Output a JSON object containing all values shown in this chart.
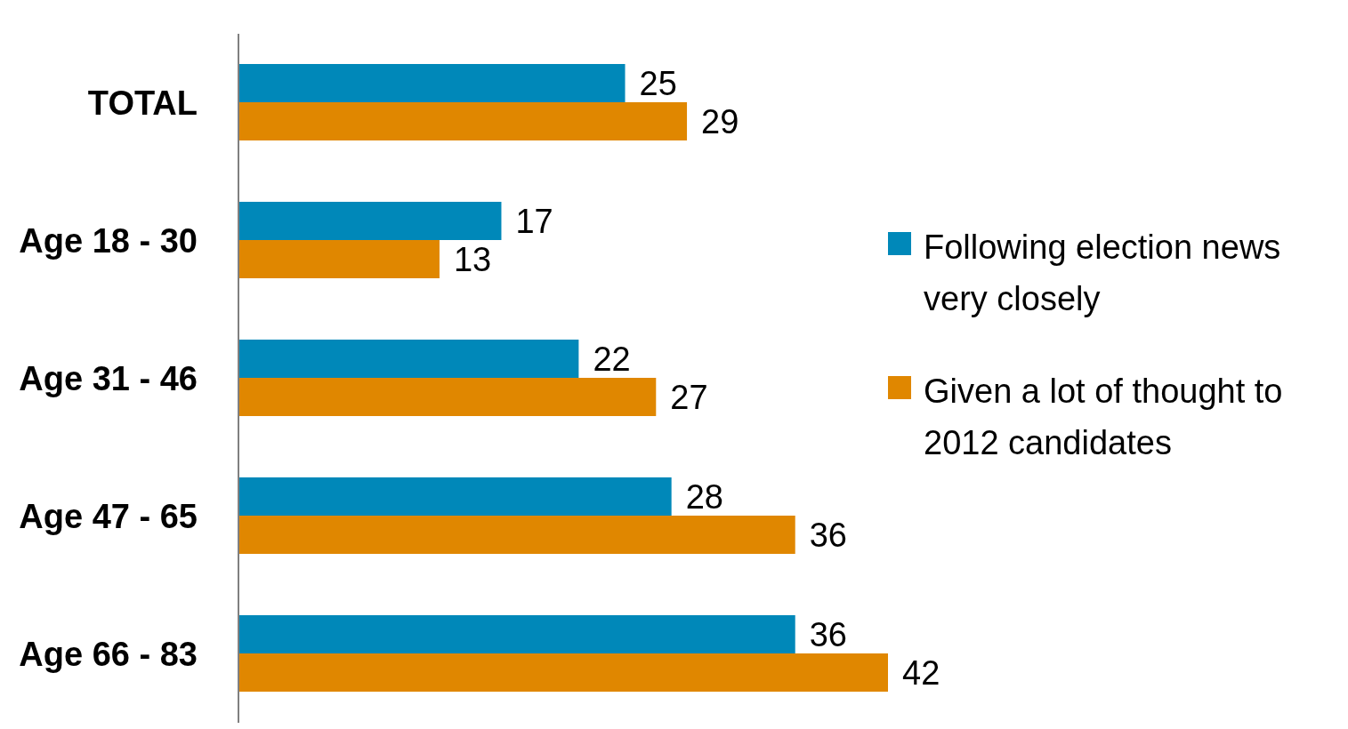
{
  "chart_data": {
    "type": "bar",
    "orientation": "horizontal",
    "categories": [
      "TOTAL",
      "Age 18 - 30",
      "Age 31 - 46",
      "Age 47 - 65",
      "Age 66 - 83"
    ],
    "series": [
      {
        "name": "Following election news very closely",
        "color": "#0088b9",
        "values": [
          25,
          17,
          22,
          28,
          36
        ]
      },
      {
        "name": "Given a lot of thought to 2012 candidates",
        "color": "#e08700",
        "values": [
          29,
          13,
          27,
          36,
          42
        ]
      }
    ],
    "data_labels": true,
    "legend": "right",
    "grid": false
  }
}
